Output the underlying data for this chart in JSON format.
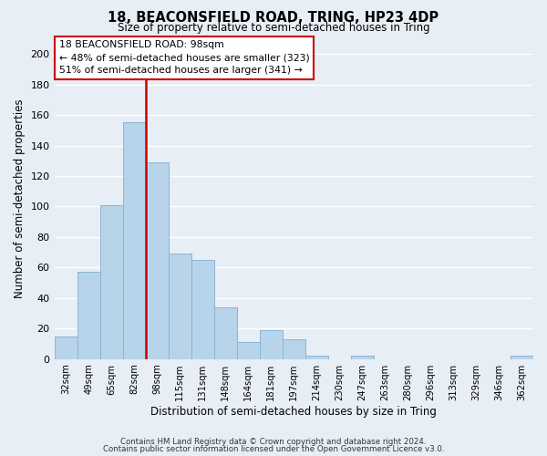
{
  "title": "18, BEACONSFIELD ROAD, TRING, HP23 4DP",
  "subtitle": "Size of property relative to semi-detached houses in Tring",
  "xlabel": "Distribution of semi-detached houses by size in Tring",
  "ylabel": "Number of semi-detached properties",
  "bar_labels": [
    "32sqm",
    "49sqm",
    "65sqm",
    "82sqm",
    "98sqm",
    "115sqm",
    "131sqm",
    "148sqm",
    "164sqm",
    "181sqm",
    "197sqm",
    "214sqm",
    "230sqm",
    "247sqm",
    "263sqm",
    "280sqm",
    "296sqm",
    "313sqm",
    "329sqm",
    "346sqm",
    "362sqm"
  ],
  "bar_values": [
    15,
    57,
    101,
    155,
    129,
    69,
    65,
    34,
    11,
    19,
    13,
    2,
    0,
    2,
    0,
    0,
    0,
    0,
    0,
    0,
    2
  ],
  "bar_color": "#b8d4ea",
  "bar_edge_color": "#8ab4d4",
  "vline_color": "#cc0000",
  "vline_x_idx": 3.5,
  "ylim": [
    0,
    210
  ],
  "yticks": [
    0,
    20,
    40,
    60,
    80,
    100,
    120,
    140,
    160,
    180,
    200
  ],
  "annotation_title": "18 BEACONSFIELD ROAD: 98sqm",
  "annotation_line1": "← 48% of semi-detached houses are smaller (323)",
  "annotation_line2": "51% of semi-detached houses are larger (341) →",
  "annotation_box_color": "#ffffff",
  "annotation_box_edge": "#cc0000",
  "footer1": "Contains HM Land Registry data © Crown copyright and database right 2024.",
  "footer2": "Contains public sector information licensed under the Open Government Licence v3.0.",
  "background_color": "#e8eef5",
  "plot_bg_color": "#e8eef5",
  "grid_color": "#ffffff"
}
